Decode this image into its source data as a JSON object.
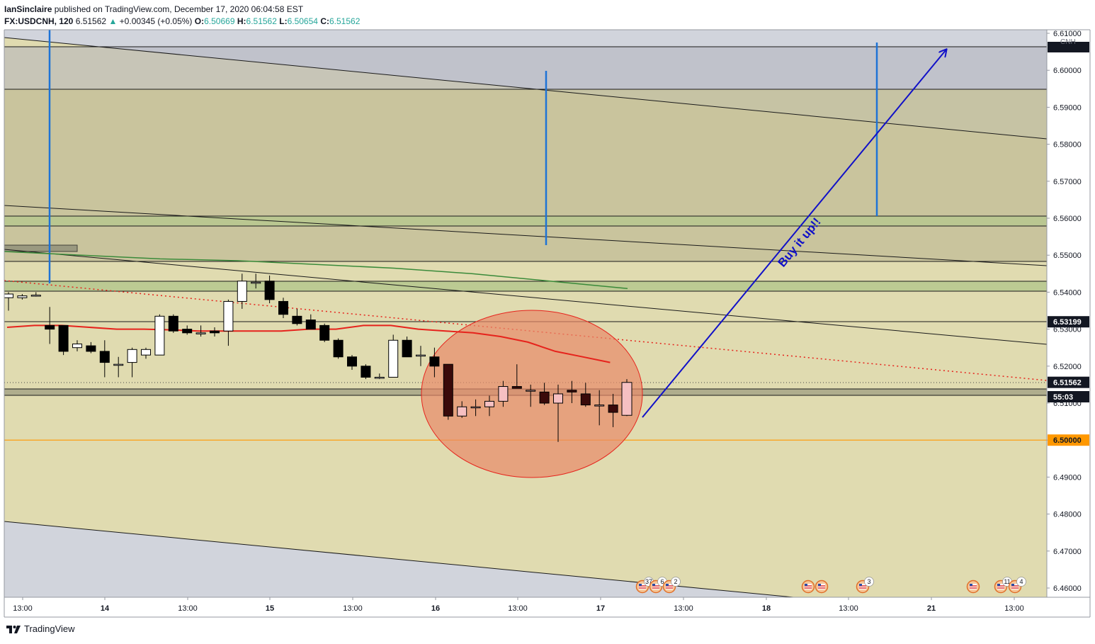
{
  "header": {
    "author": "IanSinclaire",
    "published": "published on TradingView.com, December 17, 2020 06:04:58 EST"
  },
  "ticker": {
    "symbol": "FX:USDCNH, 120",
    "last": "6.51562",
    "arrow": "▲",
    "change": "+0.00345 (+0.05%)",
    "o_label": "O:",
    "o": "6.50669",
    "h_label": "H:",
    "h": "6.51562",
    "l_label": "L:",
    "l": "6.50654",
    "c_label": "C:",
    "c": "6.51562"
  },
  "footer": {
    "brand": "TradingView"
  },
  "colors": {
    "up_candle": "#ffffff",
    "down_candle": "#000000",
    "ma_red": "#e6231c",
    "ma_green": "#3a8a3a",
    "arrow_blue": "#1010c8",
    "level_orange": "#ff9800",
    "ellipse_fill": "#e88a6a",
    "zone_olive": "#c4c09a",
    "zone_green": "#b8c890",
    "zone_gray": "#b2b3be",
    "channel_fill": "#e0dbb0"
  },
  "chart_data": {
    "type": "candlestick",
    "symbol": "FX:USDCNH",
    "interval": "120",
    "currency": "CNH",
    "ylim": [
      6.456,
      6.612
    ],
    "y_ticks": [
      "6.61000",
      "6.60000",
      "6.59000",
      "6.58000",
      "6.57000",
      "6.56000",
      "6.55000",
      "6.54000",
      "6.53000",
      "6.52000",
      "6.51000",
      "6.50000",
      "6.49000",
      "6.48000",
      "6.47000",
      "6.46000"
    ],
    "x_ticks": [
      "13:00",
      "14",
      "13:00",
      "15",
      "13:00",
      "16",
      "13:00",
      "17",
      "13:00",
      "18",
      "13:00",
      "21",
      "13:00"
    ],
    "price_labels": [
      {
        "text": "6.53199",
        "value": 6.53199,
        "style": "dark"
      },
      {
        "text": "6.51562",
        "value": 6.51562,
        "style": "dark"
      },
      {
        "text": "55:03",
        "value": 6.5115,
        "style": "dark"
      },
      {
        "text": "6.50000",
        "value": 6.5,
        "style": "orange"
      }
    ],
    "annotation_text": "Buy it up!!",
    "candles": [
      {
        "o": 6.5385,
        "h": 6.54,
        "l": 6.535,
        "c": 6.5395
      },
      {
        "o": 6.5385,
        "h": 6.5395,
        "l": 6.538,
        "c": 6.539
      },
      {
        "o": 6.5392,
        "h": 6.54,
        "l": 6.5388,
        "c": 6.5392
      },
      {
        "o": 6.531,
        "h": 6.536,
        "l": 6.526,
        "c": 6.53
      },
      {
        "o": 6.531,
        "h": 6.531,
        "l": 6.523,
        "c": 6.524
      },
      {
        "o": 6.525,
        "h": 6.527,
        "l": 6.524,
        "c": 6.526
      },
      {
        "o": 6.5255,
        "h": 6.5265,
        "l": 6.5235,
        "c": 6.524
      },
      {
        "o": 6.524,
        "h": 6.527,
        "l": 6.517,
        "c": 6.521
      },
      {
        "o": 6.5205,
        "h": 6.5225,
        "l": 6.517,
        "c": 6.5205
      },
      {
        "o": 6.521,
        "h": 6.525,
        "l": 6.517,
        "c": 6.5245
      },
      {
        "o": 6.523,
        "h": 6.525,
        "l": 6.522,
        "c": 6.5245
      },
      {
        "o": 6.523,
        "h": 6.534,
        "l": 6.523,
        "c": 6.5335
      },
      {
        "o": 6.5335,
        "h": 6.534,
        "l": 6.529,
        "c": 6.5295
      },
      {
        "o": 6.53,
        "h": 6.531,
        "l": 6.5285,
        "c": 6.529
      },
      {
        "o": 6.529,
        "h": 6.531,
        "l": 6.528,
        "c": 6.529
      },
      {
        "o": 6.5295,
        "h": 6.5305,
        "l": 6.528,
        "c": 6.529
      },
      {
        "o": 6.5295,
        "h": 6.538,
        "l": 6.5255,
        "c": 6.5375
      },
      {
        "o": 6.5375,
        "h": 6.545,
        "l": 6.5355,
        "c": 6.543
      },
      {
        "o": 6.5427,
        "h": 6.545,
        "l": 6.541,
        "c": 6.5427
      },
      {
        "o": 6.543,
        "h": 6.5445,
        "l": 6.537,
        "c": 6.538
      },
      {
        "o": 6.5375,
        "h": 6.5385,
        "l": 6.533,
        "c": 6.534
      },
      {
        "o": 6.5335,
        "h": 6.5355,
        "l": 6.531,
        "c": 6.5315
      },
      {
        "o": 6.5325,
        "h": 6.534,
        "l": 6.53,
        "c": 6.53
      },
      {
        "o": 6.531,
        "h": 6.5315,
        "l": 6.5265,
        "c": 6.527
      },
      {
        "o": 6.527,
        "h": 6.5275,
        "l": 6.522,
        "c": 6.5225
      },
      {
        "o": 6.5225,
        "h": 6.523,
        "l": 6.519,
        "c": 6.52
      },
      {
        "o": 6.52,
        "h": 6.5205,
        "l": 6.5165,
        "c": 6.517
      },
      {
        "o": 6.517,
        "h": 6.518,
        "l": 6.5165,
        "c": 6.517
      },
      {
        "o": 6.517,
        "h": 6.5285,
        "l": 6.517,
        "c": 6.527
      },
      {
        "o": 6.527,
        "h": 6.528,
        "l": 6.5225,
        "c": 6.5225
      },
      {
        "o": 6.523,
        "h": 6.5255,
        "l": 6.52,
        "c": 6.523
      },
      {
        "o": 6.5225,
        "h": 6.525,
        "l": 6.517,
        "c": 6.52
      },
      {
        "o": 6.5205,
        "h": 6.5205,
        "l": 6.5055,
        "c": 6.5065
      },
      {
        "o": 6.5065,
        "h": 6.5105,
        "l": 6.506,
        "c": 6.509
      },
      {
        "o": 6.509,
        "h": 6.511,
        "l": 6.5065,
        "c": 6.509
      },
      {
        "o": 6.509,
        "h": 6.512,
        "l": 6.5065,
        "c": 6.5105
      },
      {
        "o": 6.5105,
        "h": 6.516,
        "l": 6.509,
        "c": 6.5145
      },
      {
        "o": 6.5145,
        "h": 6.5205,
        "l": 6.514,
        "c": 6.514
      },
      {
        "o": 6.5135,
        "h": 6.515,
        "l": 6.509,
        "c": 6.5135
      },
      {
        "o": 6.513,
        "h": 6.5155,
        "l": 6.5095,
        "c": 6.51
      },
      {
        "o": 6.51,
        "h": 6.515,
        "l": 6.4995,
        "c": 6.5125
      },
      {
        "o": 6.5135,
        "h": 6.516,
        "l": 6.51,
        "c": 6.513
      },
      {
        "o": 6.5125,
        "h": 6.5155,
        "l": 6.509,
        "c": 6.5095
      },
      {
        "o": 6.5095,
        "h": 6.5135,
        "l": 6.504,
        "c": 6.5095
      },
      {
        "o": 6.5095,
        "h": 6.5125,
        "l": 6.5035,
        "c": 6.5075
      },
      {
        "o": 6.5067,
        "h": 6.5165,
        "l": 6.5065,
        "c": 6.5156
      }
    ],
    "ma_red": [
      6.5305,
      6.531,
      6.531,
      6.5305,
      6.53,
      6.53,
      6.5298,
      6.5295,
      6.5295,
      6.5295,
      6.5295,
      6.53,
      6.53,
      6.531,
      6.531,
      6.53,
      6.5295,
      6.529,
      6.528,
      6.5265,
      6.524,
      6.5225,
      6.521
    ],
    "ma_green": [
      6.551,
      6.55,
      6.549,
      6.5485,
      6.5475,
      6.5465,
      6.545,
      6.543,
      6.541
    ],
    "event_markers": [
      {
        "count": "37"
      },
      {
        "count": "6"
      },
      {
        "count": "2"
      },
      {
        "count": ""
      },
      {
        "count": ""
      },
      {
        "count": "3"
      },
      {
        "count": ""
      },
      {
        "count": "11"
      },
      {
        "count": "4"
      }
    ]
  }
}
